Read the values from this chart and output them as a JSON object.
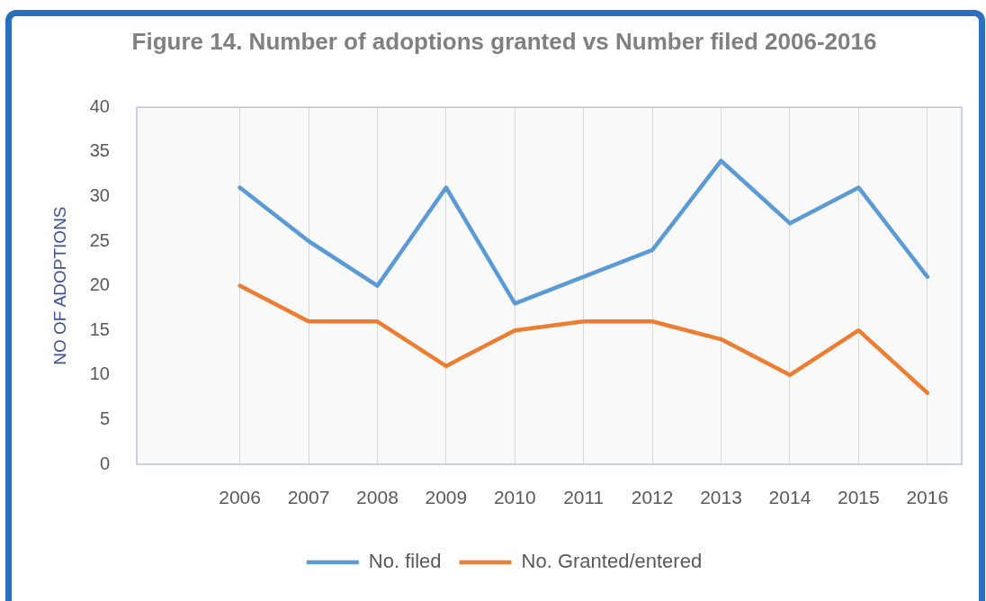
{
  "chart_data": {
    "type": "line",
    "title": "Figure 14. Number of adoptions granted vs Number filed 2006-2016",
    "ylabel": "NO OF ADOPTIONS",
    "categories": [
      null,
      "2006",
      "2007",
      "2008",
      "2009",
      "2010",
      "2011",
      "2012",
      "2013",
      "2014",
      "2015",
      "2016"
    ],
    "series": [
      {
        "name": "No. filed",
        "color": "#5b9bd5",
        "values": [
          null,
          31,
          25,
          20,
          31,
          18,
          21,
          24,
          34,
          27,
          31,
          21
        ]
      },
      {
        "name": "No. Granted/entered",
        "color": "#ed7d31",
        "values": [
          null,
          20,
          16,
          16,
          11,
          15,
          16,
          16,
          14,
          10,
          15,
          8
        ]
      }
    ],
    "ylim": [
      0,
      40
    ],
    "yticks": [
      0,
      5,
      10,
      15,
      20,
      25,
      30,
      35,
      40
    ],
    "grid": "x",
    "legend": "bottom",
    "marker": "none"
  }
}
